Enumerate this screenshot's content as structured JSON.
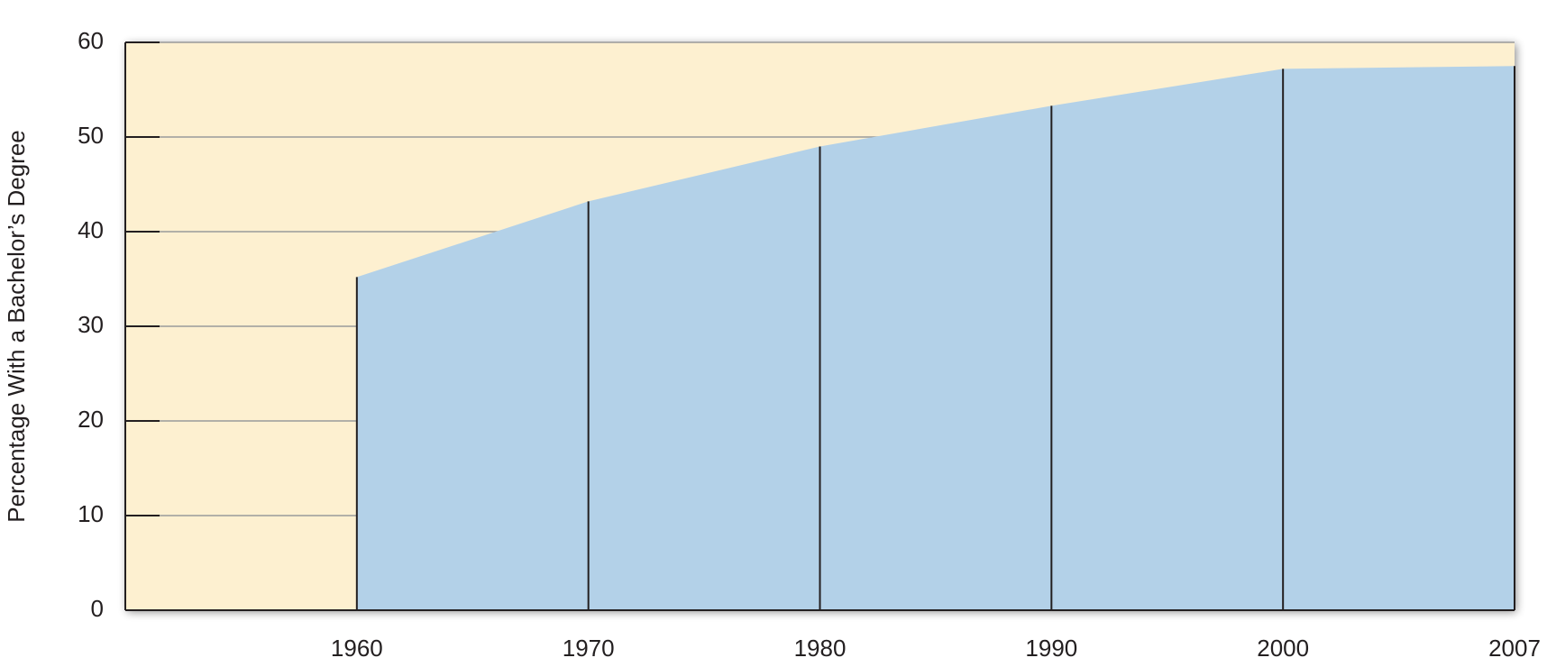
{
  "chart_data": {
    "type": "area",
    "y_axis_label": "Percentage With a Bachelor’s Degree",
    "categories": [
      "1960",
      "1970",
      "1980",
      "1990",
      "2000",
      "2007"
    ],
    "values": [
      35.2,
      43.2,
      49.0,
      53.3,
      57.2,
      57.5
    ],
    "color": "#b3d1e8",
    "background": "#fdf0d0",
    "ylim": [
      0,
      60
    ],
    "yticks": [
      0,
      10,
      20,
      30,
      40,
      50,
      60
    ],
    "grid": true
  }
}
